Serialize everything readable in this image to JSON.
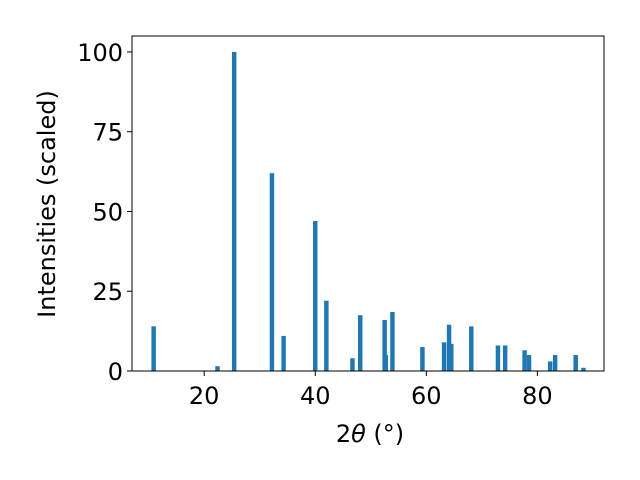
{
  "chart_data": {
    "type": "bar",
    "title": "",
    "xlabel_prefix": "2",
    "xlabel_theta": "θ",
    "xlabel_unit": " (°)",
    "ylabel": "Intensities (scaled)",
    "xlim": [
      7,
      92
    ],
    "ylim": [
      0,
      105
    ],
    "xticks": [
      20,
      40,
      60,
      80
    ],
    "yticks": [
      0,
      25,
      50,
      75,
      100
    ],
    "bar_color": "#1f77b4",
    "bar_width_deg": 0.8,
    "grid": false,
    "legend": "none",
    "x": [
      10.9,
      22.4,
      25.4,
      32.2,
      34.3,
      40.0,
      42.0,
      46.7,
      48.1,
      52.5,
      52.7,
      53.9,
      59.3,
      63.2,
      64.1,
      64.5,
      68.1,
      72.9,
      74.2,
      77.7,
      78.5,
      82.3,
      83.2,
      86.9,
      88.3
    ],
    "values": [
      14,
      1.5,
      100,
      62,
      11,
      47,
      22,
      4,
      17.5,
      16,
      5,
      18.5,
      7.5,
      9,
      14.5,
      8.5,
      14,
      8,
      8,
      6.5,
      5,
      3,
      5,
      5,
      1
    ]
  }
}
